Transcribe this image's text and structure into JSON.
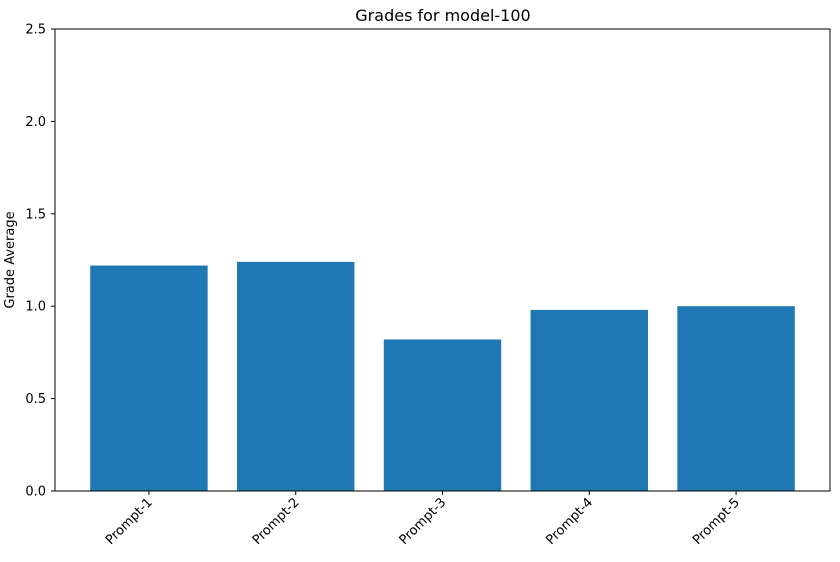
{
  "chart_data": {
    "type": "bar",
    "title": "Grades for model-100",
    "xlabel": "",
    "ylabel": "Grade Average",
    "categories": [
      "Prompt-1",
      "Prompt-2",
      "Prompt-3",
      "Prompt-4",
      "Prompt-5"
    ],
    "values": [
      1.22,
      1.24,
      0.82,
      0.98,
      1.0
    ],
    "ylim": [
      0,
      2.5
    ],
    "yticks": [
      0.0,
      0.5,
      1.0,
      1.5,
      2.0,
      2.5
    ],
    "ytick_labels": [
      "0.0",
      "0.5",
      "1.0",
      "1.5",
      "2.0",
      "2.5"
    ],
    "bar_color": "#1f77b4",
    "grid": false,
    "legend": "none",
    "xtick_rotation_deg": 45
  }
}
